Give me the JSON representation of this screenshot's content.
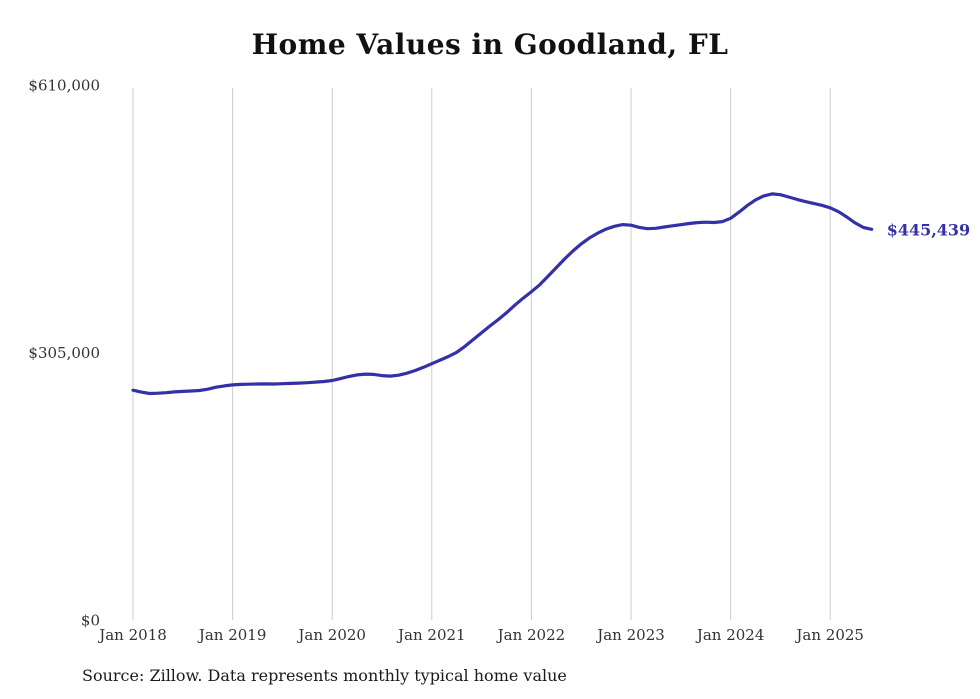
{
  "title": "Home Values in Goodland, FL",
  "source_note": "Source: Zillow. Data represents monthly typical home value",
  "end_label": "$445,439",
  "colors": {
    "line": "#3431a8",
    "end_label": "#3431a8",
    "grid": "#cccccc",
    "axis_text": "#333333",
    "title_text": "#111111"
  },
  "chart_data": {
    "type": "line",
    "title": "Home Values in Goodland, FL",
    "xlabel": "",
    "ylabel": "",
    "ylim": [
      0,
      610000
    ],
    "grid": "vertical-yearly",
    "legend": "none",
    "x_start": "2018-01",
    "x_interval": "month",
    "x_tick_labels": [
      "Jan 2018",
      "Jan 2019",
      "Jan 2020",
      "Jan 2021",
      "Jan 2022",
      "Jan 2023",
      "Jan 2024",
      "Jan 2025"
    ],
    "y_ticks": [
      {
        "label": "$610,000",
        "value": 610000
      },
      {
        "label": "$305,000",
        "value": 305000
      },
      {
        "label": "$0",
        "value": 0
      }
    ],
    "end_value": 445439,
    "end_value_label": "$445,439",
    "series": [
      {
        "name": "Monthly typical home value",
        "values": [
          262000,
          259800,
          258300,
          258600,
          259200,
          260100,
          260600,
          261100,
          261700,
          263100,
          265400,
          266900,
          268100,
          268600,
          268900,
          269100,
          269200,
          269100,
          269400,
          269800,
          270100,
          270600,
          271200,
          271900,
          273100,
          275200,
          277600,
          279500,
          280400,
          280000,
          278700,
          278100,
          279100,
          281400,
          284500,
          288100,
          292200,
          296300,
          300400,
          305200,
          312100,
          319800,
          327600,
          335200,
          342500,
          350300,
          358900,
          366900,
          374300,
          382200,
          391900,
          401800,
          411600,
          420700,
          428800,
          435700,
          441100,
          445700,
          448900,
          450800,
          450100,
          447600,
          446200,
          446600,
          448100,
          449500,
          450700,
          452100,
          453100,
          453600,
          453200,
          454200,
          458000,
          465000,
          472500,
          479000,
          483500,
          485800,
          484900,
          482300,
          479600,
          477100,
          475000,
          472800,
          470000,
          465500,
          459500,
          452800,
          447500,
          445439
        ]
      }
    ]
  }
}
